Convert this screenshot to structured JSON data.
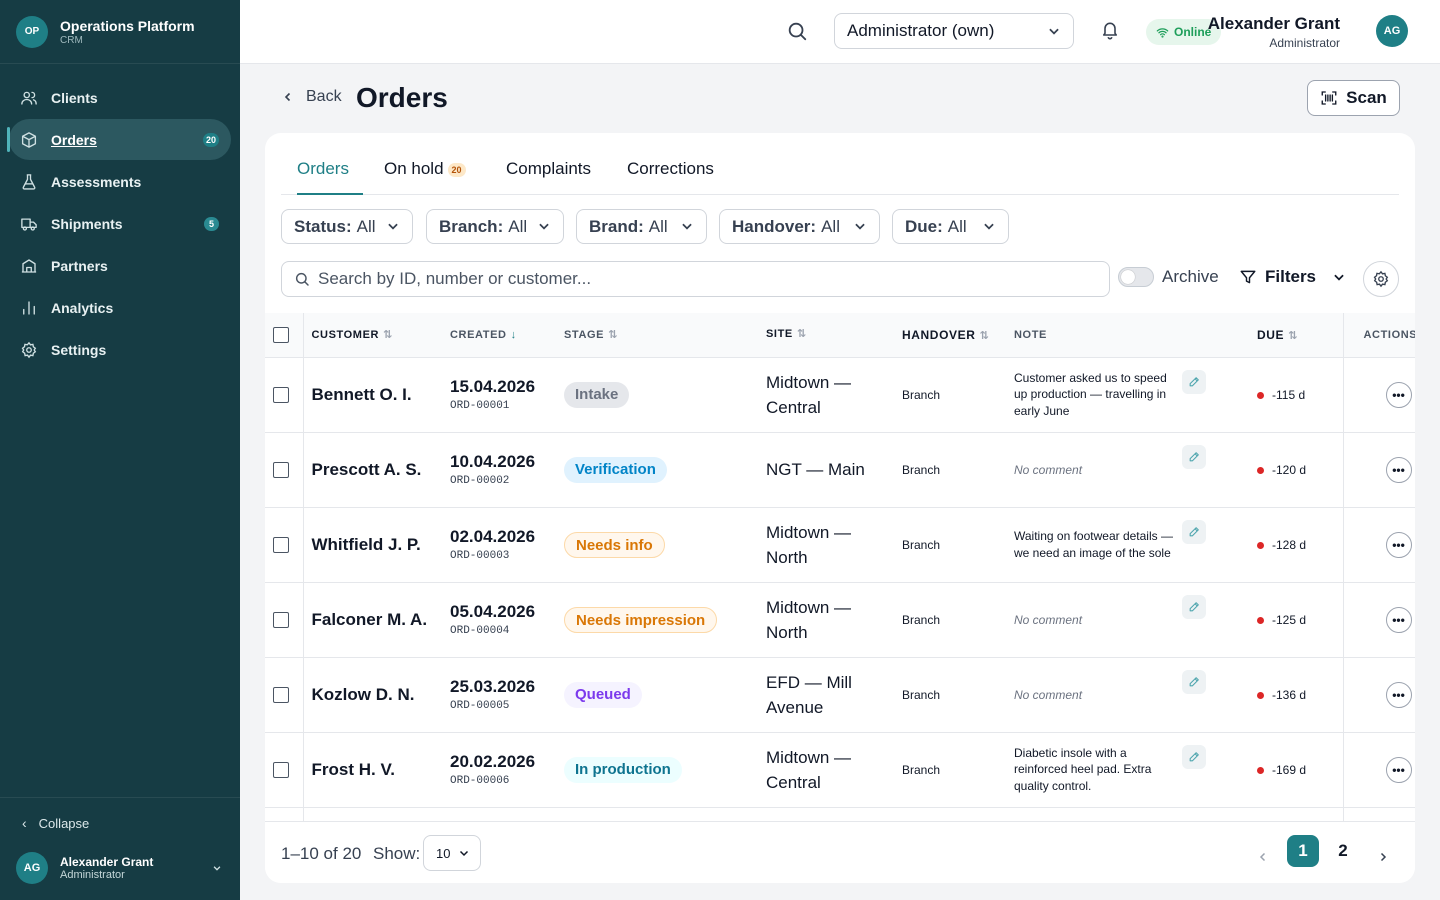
{
  "brand": {
    "logo": "OP",
    "name": "Operations Platform",
    "sub": "CRM"
  },
  "sidebar": {
    "items": [
      {
        "label": "Clients",
        "icon": "users-icon"
      },
      {
        "label": "Orders",
        "icon": "box-icon",
        "badge": "20"
      },
      {
        "label": "Assessments",
        "icon": "flask-icon"
      },
      {
        "label": "Shipments",
        "icon": "truck-icon",
        "badge": "5"
      },
      {
        "label": "Partners",
        "icon": "handshake-icon"
      },
      {
        "label": "Analytics",
        "icon": "bar-chart-icon"
      },
      {
        "label": "Settings",
        "icon": "gear-icon"
      }
    ],
    "active": "Orders",
    "collapse_label": "Collapse",
    "user": {
      "initials": "AG",
      "name": "Alexander Grant",
      "role": "Administrator"
    }
  },
  "header": {
    "role_select": "Administrator (own)",
    "status": "Online",
    "user": {
      "name": "Alexander Grant",
      "role": "Administrator",
      "initials": "AG"
    }
  },
  "page": {
    "back_label": "Back",
    "title": "Orders",
    "scan_label": "Scan"
  },
  "tabs": [
    {
      "label": "Orders",
      "active": true
    },
    {
      "label": "On hold",
      "badge": "20"
    },
    {
      "label": "Complaints"
    },
    {
      "label": "Corrections"
    }
  ],
  "filters": [
    {
      "label": "Status:",
      "value": "All"
    },
    {
      "label": "Branch:",
      "value": "All"
    },
    {
      "label": "Brand:",
      "value": "All"
    },
    {
      "label": "Handover:",
      "value": "All"
    },
    {
      "label": "Due:",
      "value": "All"
    }
  ],
  "search": {
    "placeholder": "Search by ID, number or customer..."
  },
  "archive_label": "Archive",
  "filters_label": "Filters",
  "table": {
    "columns": [
      "CUSTOMER",
      "CREATED",
      "STAGE",
      "SITE",
      "HANDOVER",
      "NOTE",
      "DUE",
      "ACTIONS"
    ],
    "rows": [
      {
        "customer": "Bennett O. I.",
        "created": "15.04.2026",
        "order": "ORD-00001",
        "stage": "Intake",
        "site": "Midtown — Central",
        "handover": "Branch",
        "note": "Customer asked us to speed up production — travelling in early June",
        "due": "-115 d"
      },
      {
        "customer": "Prescott A. S.",
        "created": "10.04.2026",
        "order": "ORD-00002",
        "stage": "Verification",
        "site": "NGT — Main",
        "handover": "Branch",
        "note": "",
        "due": "-120 d"
      },
      {
        "customer": "Whitfield J. P.",
        "created": "02.04.2026",
        "order": "ORD-00003",
        "stage": "Needs info",
        "site": "Midtown — North",
        "handover": "Branch",
        "note": "Waiting on footwear details — we need an image of the sole",
        "due": "-128 d"
      },
      {
        "customer": "Falconer M. A.",
        "created": "05.04.2026",
        "order": "ORD-00004",
        "stage": "Needs impression",
        "site": "Midtown — North",
        "handover": "Branch",
        "note": "",
        "due": "-125 d"
      },
      {
        "customer": "Kozlow D. N.",
        "created": "25.03.2026",
        "order": "ORD-00005",
        "stage": "Queued",
        "site": "EFD — Mill Avenue",
        "handover": "Branch",
        "note": "",
        "due": "-136 d"
      },
      {
        "customer": "Frost H. V.",
        "created": "20.02.2026",
        "order": "ORD-00006",
        "stage": "In production",
        "site": "Midtown — Central",
        "handover": "Branch",
        "note": "Diabetic insole with a reinforced heel pad. Extra quality control.",
        "due": "-169 d"
      },
      {
        "customer": "",
        "created": "",
        "order": "",
        "stage": "",
        "site": "Midt...",
        "handover": "",
        "note": "",
        "due": ""
      }
    ],
    "no_comment": "No comment"
  },
  "stage_colors": {
    "Intake": {
      "bg": "#e5e7eb",
      "fg": "#6b7280"
    },
    "Verification": {
      "bg": "#e0f2fe",
      "fg": "#0284c7"
    },
    "Needs info": {
      "bg": "#fff7ed",
      "fg": "#d97706",
      "border": "#fcd9a8"
    },
    "Needs impression": {
      "bg": "#fff7ed",
      "fg": "#d97706",
      "border": "#fcd9a8"
    },
    "Queued": {
      "bg": "#f5f3ff",
      "fg": "#7c3aed"
    },
    "In production": {
      "bg": "#ecfeff",
      "fg": "#0e7490"
    }
  },
  "footer": {
    "range": "1–10 of 20",
    "show_label": "Show:",
    "page_size": "10",
    "pages": [
      "1",
      "2"
    ],
    "current_page": "1"
  },
  "colors": {
    "sidebar": "#163c44",
    "accent": "#1f7f86",
    "due_dot": "#dc2626",
    "online": "#1e9e5a"
  }
}
